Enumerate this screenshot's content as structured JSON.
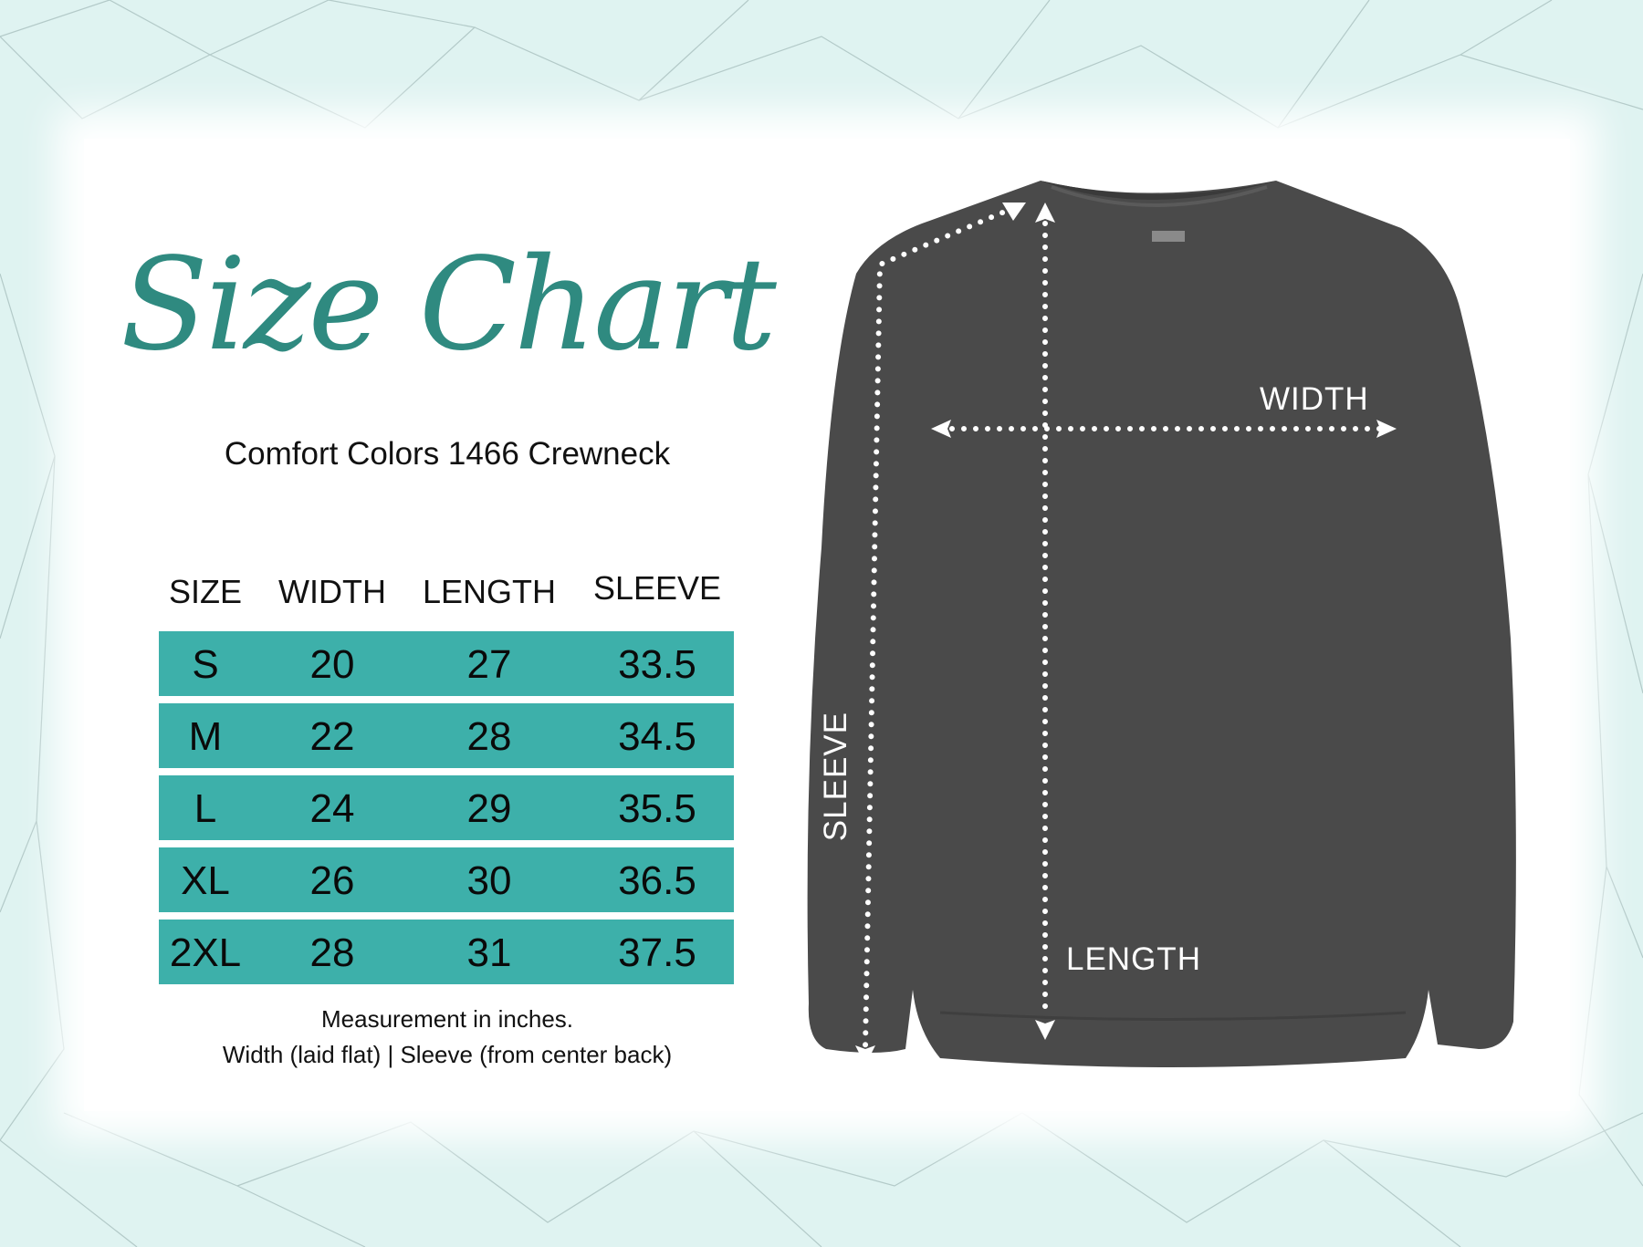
{
  "header": {
    "title": "Size Chart",
    "subtitle": "Comfort Colors 1466 Crewneck"
  },
  "table": {
    "columns": [
      "SIZE",
      "WIDTH",
      "LENGTH",
      "SLEEVE"
    ],
    "rows": [
      [
        "S",
        "20",
        "27",
        "33.5"
      ],
      [
        "M",
        "22",
        "28",
        "34.5"
      ],
      [
        "L",
        "24",
        "29",
        "35.5"
      ],
      [
        "XL",
        "26",
        "30",
        "36.5"
      ],
      [
        "2XL",
        "28",
        "31",
        "37.5"
      ]
    ]
  },
  "notes": [
    "Measurement in inches.",
    "Width (laid flat)  |  Sleeve (from center back)"
  ],
  "diagram": {
    "width_label": "WIDTH",
    "length_label": "LENGTH",
    "sleeve_label": "SLEEVE"
  },
  "colors": {
    "accent": "#2f8a80",
    "row": "#3db0aa",
    "garment": "#4a4a4a",
    "background": "#dff3f1"
  }
}
